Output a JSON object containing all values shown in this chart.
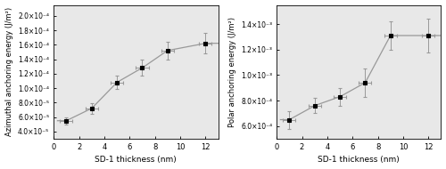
{
  "left": {
    "x": [
      1,
      3,
      5,
      7,
      9,
      12
    ],
    "y": [
      5.5e-05,
      7.2e-05,
      0.000108,
      0.000128,
      0.000152,
      0.000162
    ],
    "yerr": [
      5e-06,
      7e-06,
      9e-06,
      1.1e-05,
      1.2e-05,
      1.4e-05
    ],
    "xerr": [
      0.5,
      0.5,
      0.5,
      0.5,
      0.5,
      0.5
    ],
    "ylabel": "Azimuthal anchoring energy (J/m²)",
    "xlabel": "SD-1 thickness (nm)",
    "ylim": [
      3e-05,
      0.000215
    ],
    "xlim": [
      0,
      13
    ],
    "yticks": [
      4e-05,
      6e-05,
      8e-05,
      0.0001,
      0.00012,
      0.00014,
      0.00016,
      0.00018,
      0.0002
    ],
    "ytick_labels": [
      "4.0×10⁻⁵",
      "6.0×10⁻⁵",
      "8.0×10⁻⁵",
      "1.0×10⁻⁴",
      "1.2×10⁻⁴",
      "1.4×10⁻⁴",
      "1.6×10⁻⁴",
      "1.8×10⁻⁴",
      "2.0×10⁻⁴"
    ],
    "xticks": [
      0,
      2,
      4,
      6,
      8,
      10,
      12
    ]
  },
  "right": {
    "x": [
      1,
      3,
      5,
      7,
      9,
      12
    ],
    "y": [
      0.00065,
      0.00076,
      0.00083,
      0.00094,
      0.00131,
      0.00131
    ],
    "yerr": [
      7e-05,
      6e-05,
      7e-05,
      0.00011,
      0.00011,
      0.00013
    ],
    "xerr": [
      0.5,
      0.5,
      0.5,
      0.5,
      0.5,
      0.5
    ],
    "ylabel": "Polar anchoring energy (J/m²)",
    "xlabel": "SD-1 thickness (nm)",
    "ylim": [
      0.0005,
      0.00155
    ],
    "xlim": [
      0,
      13
    ],
    "yticks": [
      0.0006,
      0.0008,
      0.001,
      0.0012,
      0.0014
    ],
    "ytick_labels": [
      "6.0×10⁻⁴",
      "8.0×10⁻⁴",
      "1.0×10⁻³",
      "1.2×10⁻³",
      "1.4×10⁻³"
    ],
    "xticks": [
      0,
      2,
      4,
      6,
      8,
      10,
      12
    ]
  },
  "marker": "s",
  "markersize": 3.5,
  "linecolor": "#999999",
  "ecolor": "#999999",
  "capsize": 1.5,
  "elinewidth": 0.7,
  "markeredgewidth": 0.8
}
